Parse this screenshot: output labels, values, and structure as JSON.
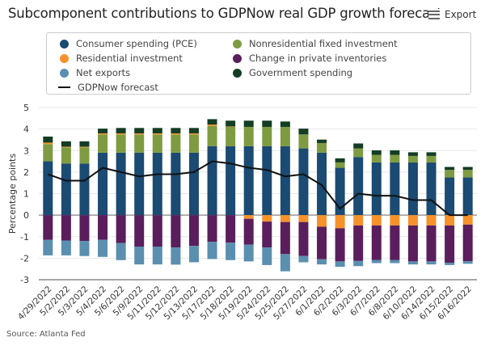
{
  "title": "Subcomponent contributions to GDPNow real GDP growth forecasts",
  "export_label": "Export",
  "source": "Source: Atlanta Fed",
  "chart_data": {
    "type": "bar",
    "stacked": true,
    "title": "Subcomponent contributions to GDPNow real GDP growth forecasts",
    "ylabel": "Percentage points",
    "xlabel": "",
    "ylim": [
      -3,
      5
    ],
    "yticks": [
      "5",
      "4",
      "3",
      "2",
      "1",
      "0",
      "-1",
      "-2",
      "-3"
    ],
    "grid": true,
    "legend_position": "top",
    "categories": [
      "4/29/2022",
      "5/2/2022",
      "5/3/2022",
      "5/4/2022",
      "5/6/2022",
      "5/9/2022",
      "5/11/2022",
      "5/12/2022",
      "5/13/2022",
      "5/17/2022",
      "5/18/2022",
      "5/19/2022",
      "5/24/2022",
      "5/25/2022",
      "5/27/2022",
      "6/1/2022",
      "6/2/2022",
      "6/3/2022",
      "6/7/2022",
      "6/8/2022",
      "6/10/2022",
      "6/14/2022",
      "6/15/2022",
      "6/16/2022"
    ],
    "series": [
      {
        "name": "Consumer spending (PCE)",
        "color": "#1b4a72",
        "values": [
          2.5,
          2.4,
          2.4,
          2.9,
          2.9,
          2.9,
          2.9,
          2.9,
          2.9,
          3.2,
          3.2,
          3.2,
          3.2,
          3.2,
          3.1,
          2.9,
          2.2,
          2.7,
          2.45,
          2.45,
          2.45,
          2.45,
          1.75,
          1.75
        ]
      },
      {
        "name": "Nonresidential fixed investment",
        "color": "#7e9b42",
        "values": [
          0.8,
          0.75,
          0.75,
          0.85,
          0.85,
          0.85,
          0.85,
          0.85,
          0.85,
          0.95,
          0.9,
          0.9,
          0.9,
          0.9,
          0.65,
          0.45,
          0.25,
          0.4,
          0.35,
          0.35,
          0.3,
          0.3,
          0.35,
          0.35
        ]
      },
      {
        "name": "Residential investment",
        "color": "#f6922a",
        "values": [
          0.07,
          0.03,
          0.03,
          0.05,
          0.05,
          0.05,
          0.05,
          0.05,
          0.05,
          0.06,
          0.02,
          -0.17,
          -0.3,
          -0.32,
          -0.32,
          -0.54,
          -0.61,
          -0.48,
          -0.48,
          -0.48,
          -0.48,
          -0.48,
          -0.48,
          -0.44
        ]
      },
      {
        "name": "Change in private inventories",
        "color": "#5a1e5c",
        "values": [
          -1.15,
          -1.18,
          -1.2,
          -1.15,
          -1.3,
          -1.46,
          -1.46,
          -1.5,
          -1.43,
          -1.24,
          -1.28,
          -1.2,
          -1.2,
          -1.49,
          -1.58,
          -1.51,
          -1.54,
          -1.65,
          -1.6,
          -1.6,
          -1.67,
          -1.67,
          -1.73,
          -1.7
        ]
      },
      {
        "name": "Net exports",
        "color": "#5b8fb0",
        "values": [
          -0.72,
          -0.69,
          -0.7,
          -0.79,
          -0.79,
          -0.83,
          -0.83,
          -0.8,
          -0.76,
          -0.8,
          -0.81,
          -0.78,
          -0.82,
          -0.8,
          -0.29,
          -0.24,
          -0.25,
          -0.24,
          -0.15,
          -0.15,
          -0.14,
          -0.14,
          -0.11,
          -0.12
        ]
      },
      {
        "name": "Government spending",
        "color": "#133d24",
        "values": [
          0.28,
          0.25,
          0.25,
          0.22,
          0.25,
          0.25,
          0.25,
          0.25,
          0.25,
          0.25,
          0.27,
          0.29,
          0.29,
          0.25,
          0.27,
          0.16,
          0.19,
          0.23,
          0.21,
          0.21,
          0.17,
          0.17,
          0.14,
          0.14
        ]
      }
    ],
    "line": {
      "name": "GDPNow forecast",
      "color": "#111111",
      "values": [
        1.9,
        1.6,
        1.6,
        2.2,
        2.0,
        1.8,
        1.9,
        1.9,
        2.0,
        2.5,
        2.4,
        2.2,
        2.1,
        1.8,
        1.9,
        1.4,
        0.3,
        1.0,
        0.9,
        0.9,
        0.7,
        0.7,
        0.0,
        0.0
      ]
    }
  }
}
